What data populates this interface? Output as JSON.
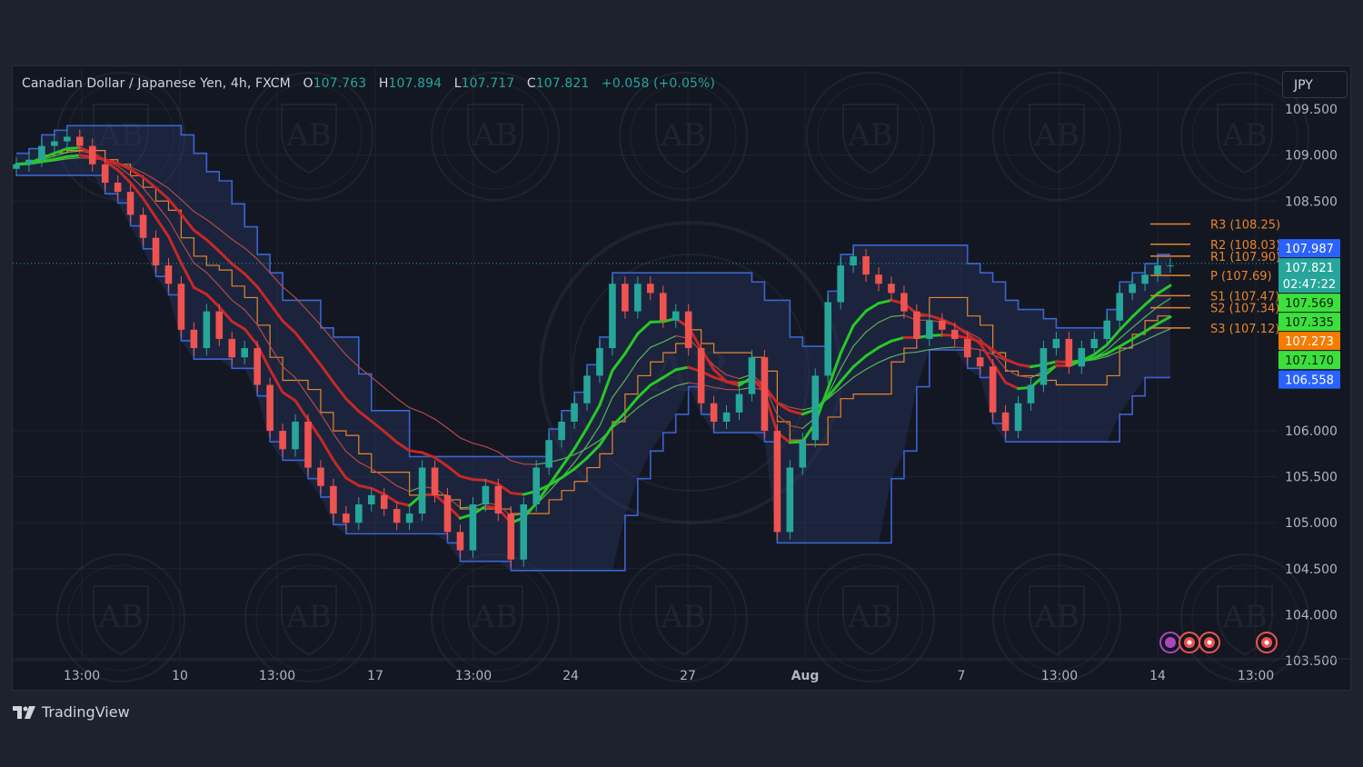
{
  "legend": {
    "symbol": "Canadian Dollar / Japanese Yen, 4h, FXCM",
    "o_label": "O",
    "o": "107.763",
    "h_label": "H",
    "h": "107.894",
    "l_label": "L",
    "l": "107.717",
    "c_label": "C",
    "c": "107.821",
    "change": "+0.058 (+0.05%)"
  },
  "currency": "JPY",
  "brand": "TradingView",
  "colors": {
    "bg": "#131722",
    "up": "#26a69a",
    "down": "#ef5350",
    "band": "#3c64d2",
    "pivot": "#e8852c",
    "grid": "#1f2330"
  },
  "chart_data": {
    "type": "line",
    "title": "Canadian Dollar / Japanese Yen, 4h, FXCM",
    "y_ticks": [
      "109.500",
      "109.000",
      "108.500",
      "106.000",
      "105.500",
      "105.000",
      "104.500",
      "104.000",
      "103.500"
    ],
    "ylim": [
      103.5,
      109.5
    ],
    "x_ticks": [
      "13:00",
      "10",
      "13:00",
      "17",
      "13:00",
      "24",
      "27",
      "Aug",
      "7",
      "13:00",
      "14",
      "13:00"
    ],
    "series": [
      {
        "name": "Price (close)",
        "color": "#26a69a",
        "values": [
          108.9,
          108.95,
          109.1,
          109.15,
          109.2,
          109.1,
          108.9,
          108.7,
          108.6,
          108.35,
          108.1,
          107.8,
          107.6,
          107.1,
          106.9,
          107.3,
          107.0,
          106.8,
          106.9,
          106.5,
          106.0,
          105.8,
          106.1,
          105.6,
          105.4,
          105.1,
          105.0,
          105.2,
          105.3,
          105.15,
          105.0,
          105.1,
          105.6,
          105.3,
          104.9,
          104.7,
          105.2,
          105.4,
          105.1,
          104.6,
          105.2,
          105.6,
          105.9,
          106.1,
          106.3,
          106.6,
          106.9,
          107.6,
          107.3,
          107.6,
          107.5,
          107.2,
          107.3,
          106.9,
          106.3,
          106.1,
          106.2,
          106.4,
          106.8,
          106.0,
          104.9,
          105.6,
          105.9,
          106.6,
          107.4,
          107.8,
          107.9,
          107.7,
          107.6,
          107.5,
          107.3,
          107.0,
          107.2,
          107.1,
          107.0,
          106.8,
          106.7,
          106.2,
          106.0,
          106.3,
          106.5,
          106.9,
          107.0,
          106.7,
          106.9,
          107.0,
          107.2,
          107.5,
          107.6,
          107.7,
          107.8,
          107.8
        ]
      },
      {
        "name": "Upper band",
        "color": "#3c64d2"
      },
      {
        "name": "Lower band",
        "color": "#3c64d2"
      },
      {
        "name": "Fast MA",
        "color": "#26c026"
      },
      {
        "name": "Slow MA",
        "color": "#c62828"
      }
    ],
    "pivots": [
      {
        "label": "R3 (108.25)",
        "value": 108.25
      },
      {
        "label": "R2 (108.03)",
        "value": 108.03
      },
      {
        "label": "R1 (107.90)",
        "value": 107.9
      },
      {
        "label": "P (107.69)",
        "value": 107.69
      },
      {
        "label": "S1 (107.47)",
        "value": 107.47
      },
      {
        "label": "S2 (107.34)",
        "value": 107.34
      },
      {
        "label": "S3 (107.12)",
        "value": 107.12
      }
    ],
    "price_tags": [
      {
        "text": "107.987",
        "color": "#2962ff",
        "value": 107.987
      },
      {
        "text": "107.821",
        "color": "#26a69a",
        "value": 107.821,
        "sub": "02:47:22"
      },
      {
        "text": "107.569",
        "color": "#3ce03c",
        "value": 107.569
      },
      {
        "text": "107.335",
        "color": "#3ce03c",
        "value": 107.335
      },
      {
        "text": "107.273",
        "color": "#f57c00",
        "value": 107.273
      },
      {
        "text": "107.170",
        "color": "#3ce03c",
        "value": 107.17
      },
      {
        "text": "106.558",
        "color": "#2962ff",
        "value": 106.558
      }
    ]
  }
}
